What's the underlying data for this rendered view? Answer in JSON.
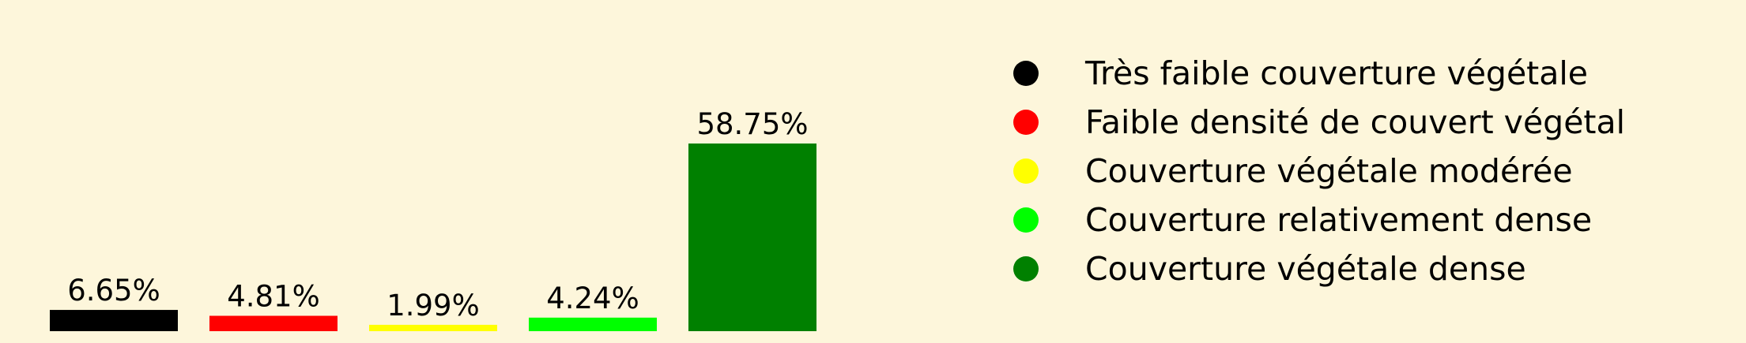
{
  "chart_data": {
    "type": "bar",
    "categories": [
      "Très faible couverture végétale",
      "Faible densité de couvert végétal",
      "Couverture végétale modérée",
      "Couverture relativement dense",
      "Couverture végétale dense"
    ],
    "values": [
      6.65,
      4.81,
      1.99,
      4.24,
      58.75
    ],
    "data_labels": [
      "6.65%",
      "4.81%",
      "1.99%",
      "4.24%",
      "58.75%"
    ],
    "colors": [
      "#000000",
      "#ff0000",
      "#ffff00",
      "#00ff00",
      "#008000"
    ],
    "ylim": [
      0,
      58.75
    ],
    "grid": false,
    "axes_visible": false,
    "legend_position": "right",
    "background": "#fdf6db"
  }
}
